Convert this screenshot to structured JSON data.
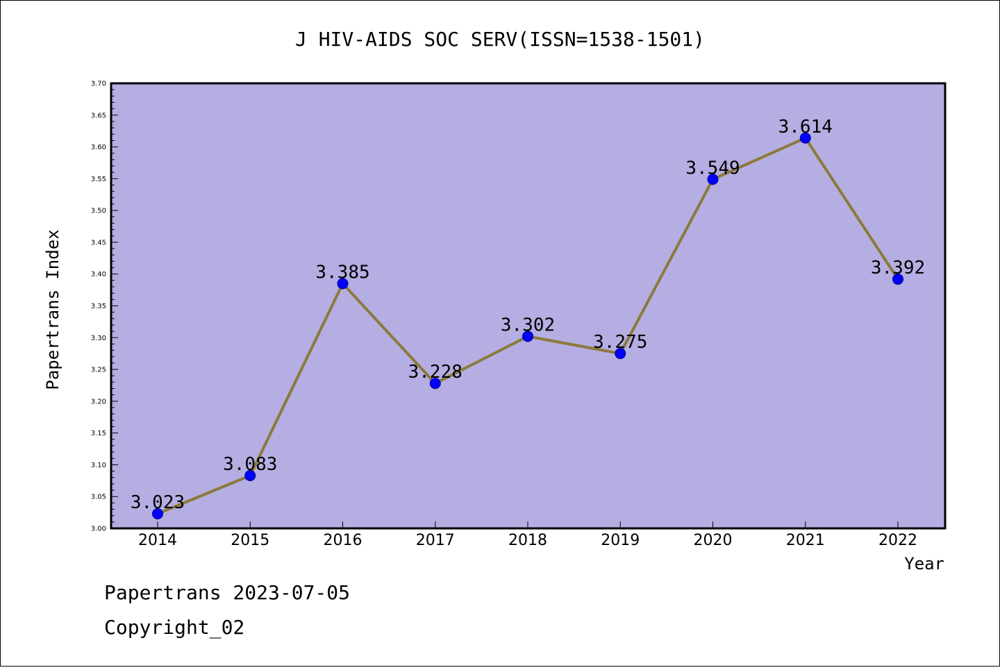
{
  "colors": {
    "plot_background": "#b5aee2",
    "line": "#8b7a3a",
    "marker": "#0000ff",
    "marker_edge": "#00008b",
    "frame": "#000000"
  },
  "footer": {
    "line1": "Papertrans 2023-07-05",
    "line2": "Copyright_02"
  },
  "chart_data": {
    "type": "line",
    "title": "J HIV-AIDS SOC SERV(ISSN=1538-1501)",
    "xlabel": "Year",
    "ylabel": "Papertrans Index",
    "ylim": [
      3.0,
      3.7
    ],
    "ytick_step": 0.05,
    "ytick_labels": [
      "3.00",
      "3.05",
      "3.10",
      "3.15",
      "3.20",
      "3.25",
      "3.30",
      "3.35",
      "3.40",
      "3.45",
      "3.50",
      "3.55",
      "3.60",
      "3.65",
      "3.70"
    ],
    "categories": [
      "2014",
      "2015",
      "2016",
      "2017",
      "2018",
      "2019",
      "2020",
      "2021",
      "2022"
    ],
    "values": [
      3.023,
      3.083,
      3.385,
      3.228,
      3.302,
      3.275,
      3.549,
      3.614,
      3.392
    ],
    "data_labels": [
      "3.023",
      "3.083",
      "3.385",
      "3.228",
      "3.302",
      "3.275",
      "3.549",
      "3.614",
      "3.392"
    ],
    "grid": false,
    "legend": "none"
  }
}
